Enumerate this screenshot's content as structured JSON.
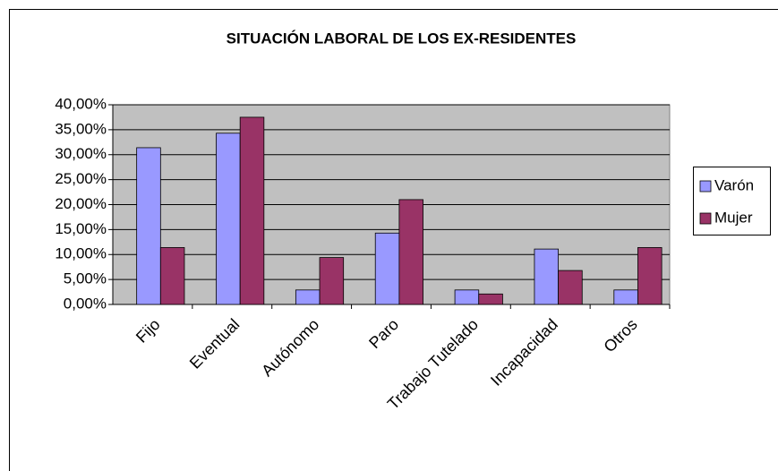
{
  "chart_data": {
    "type": "bar",
    "title": "SITUACIÓN LABORAL DE LOS EX-RESIDENTES",
    "categories": [
      "Fijo",
      "Eventual",
      "Autónomo",
      "Paro",
      "Trabajo Tutelado",
      "Incapacidad",
      "Otros"
    ],
    "series": [
      {
        "name": "Varón",
        "color": "#9999ff",
        "values": [
          31.4,
          34.3,
          2.9,
          14.3,
          2.9,
          11.1,
          2.9
        ]
      },
      {
        "name": "Mujer",
        "color": "#993366",
        "values": [
          11.4,
          37.5,
          9.4,
          21.0,
          2.1,
          6.8,
          11.4
        ]
      }
    ],
    "ylim": [
      0,
      40
    ],
    "yticks": [
      {
        "value": 0,
        "label": "0,00%"
      },
      {
        "value": 5,
        "label": "5,00%"
      },
      {
        "value": 10,
        "label": "10,00%"
      },
      {
        "value": 15,
        "label": "15,00%"
      },
      {
        "value": 20,
        "label": "20,00%"
      },
      {
        "value": 25,
        "label": "25,00%"
      },
      {
        "value": 30,
        "label": "30,00%"
      },
      {
        "value": 35,
        "label": "35,00%"
      },
      {
        "value": 40,
        "label": "40,00%"
      }
    ],
    "grid": true,
    "legend": "right"
  }
}
